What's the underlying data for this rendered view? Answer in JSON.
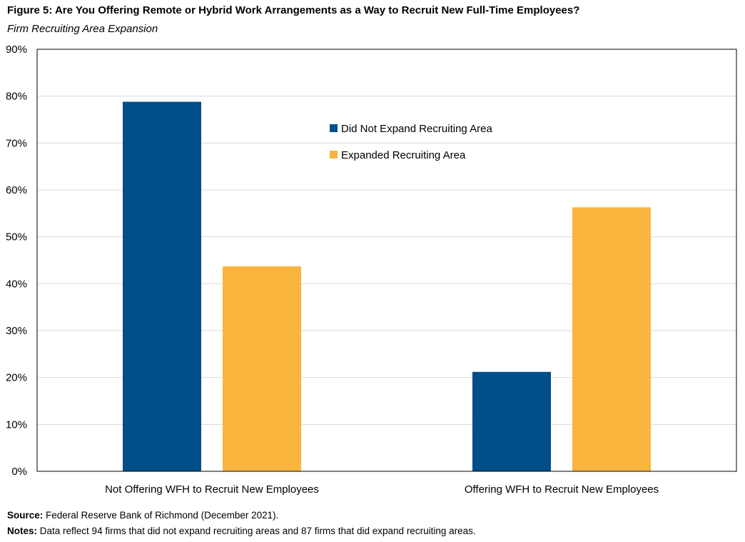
{
  "title": "Figure 5: Are You Offering Remote or Hybrid Work Arrangements as a Way to Recruit New Full-Time Employees?",
  "subtitle": "Firm Recruiting Area Expansion",
  "footer": {
    "source_label": "Source:",
    "source_text": "Federal Reserve Bank of Richmond (December 2021).",
    "notes_label": "Notes:",
    "notes_text": "Data reflect 94 firms that did not expand recruiting areas and 87 firms that did expand recruiting areas."
  },
  "chart_data": {
    "type": "bar",
    "categories": [
      "Not Offering WFH to Recruit New Employees",
      "Offering WFH to Recruit New Employees"
    ],
    "series": [
      {
        "name": "Did Not Expand Recruiting Area",
        "values": [
          78.8,
          21.2
        ],
        "color": "#004f88"
      },
      {
        "name": "Expanded Recruiting Area",
        "values": [
          43.7,
          56.3
        ],
        "color": "#f9b53e"
      }
    ],
    "ylim": [
      0,
      90
    ],
    "yticks": [
      0,
      10,
      20,
      30,
      40,
      50,
      60,
      70,
      80,
      90
    ],
    "ytick_labels": [
      "0%",
      "10%",
      "20%",
      "30%",
      "40%",
      "50%",
      "60%",
      "70%",
      "80%",
      "90%"
    ],
    "grid": true,
    "legend_position": "upper-center"
  }
}
